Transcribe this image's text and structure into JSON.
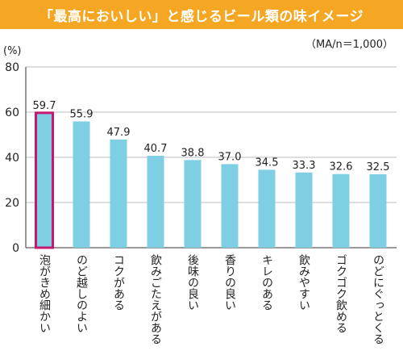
{
  "header": {
    "title": "「最高においしい」と感じるビール類の味イメージ",
    "note": "（MA/n＝1,000）"
  },
  "colors": {
    "title_bg": "#f5a623",
    "bar": "#7ecfe4",
    "highlight_border": "#c8176e",
    "grid": "#bdbdbd",
    "axis": "#333333"
  },
  "chart_data": {
    "type": "bar",
    "ylabel": "(%)",
    "ylim": [
      0,
      80
    ],
    "yticks": [
      0,
      20,
      40,
      60,
      80
    ],
    "grid": true,
    "categories": [
      "泡がきめ細かい",
      "のど越しのよい",
      "コクがある",
      "飲みごたえがある",
      "後味の良い",
      "香りの良い",
      "キレのある",
      "飲みやすい",
      "ゴクゴク飲める",
      "のどにぐっとくる"
    ],
    "values": [
      59.7,
      55.9,
      47.9,
      40.7,
      38.8,
      37.0,
      34.5,
      33.3,
      32.6,
      32.5
    ],
    "value_labels": [
      "59.7",
      "55.9",
      "47.9",
      "40.7",
      "38.8",
      "37.0",
      "34.5",
      "33.3",
      "32.6",
      "32.5"
    ],
    "highlighted_category": "泡がきめ細かい"
  }
}
